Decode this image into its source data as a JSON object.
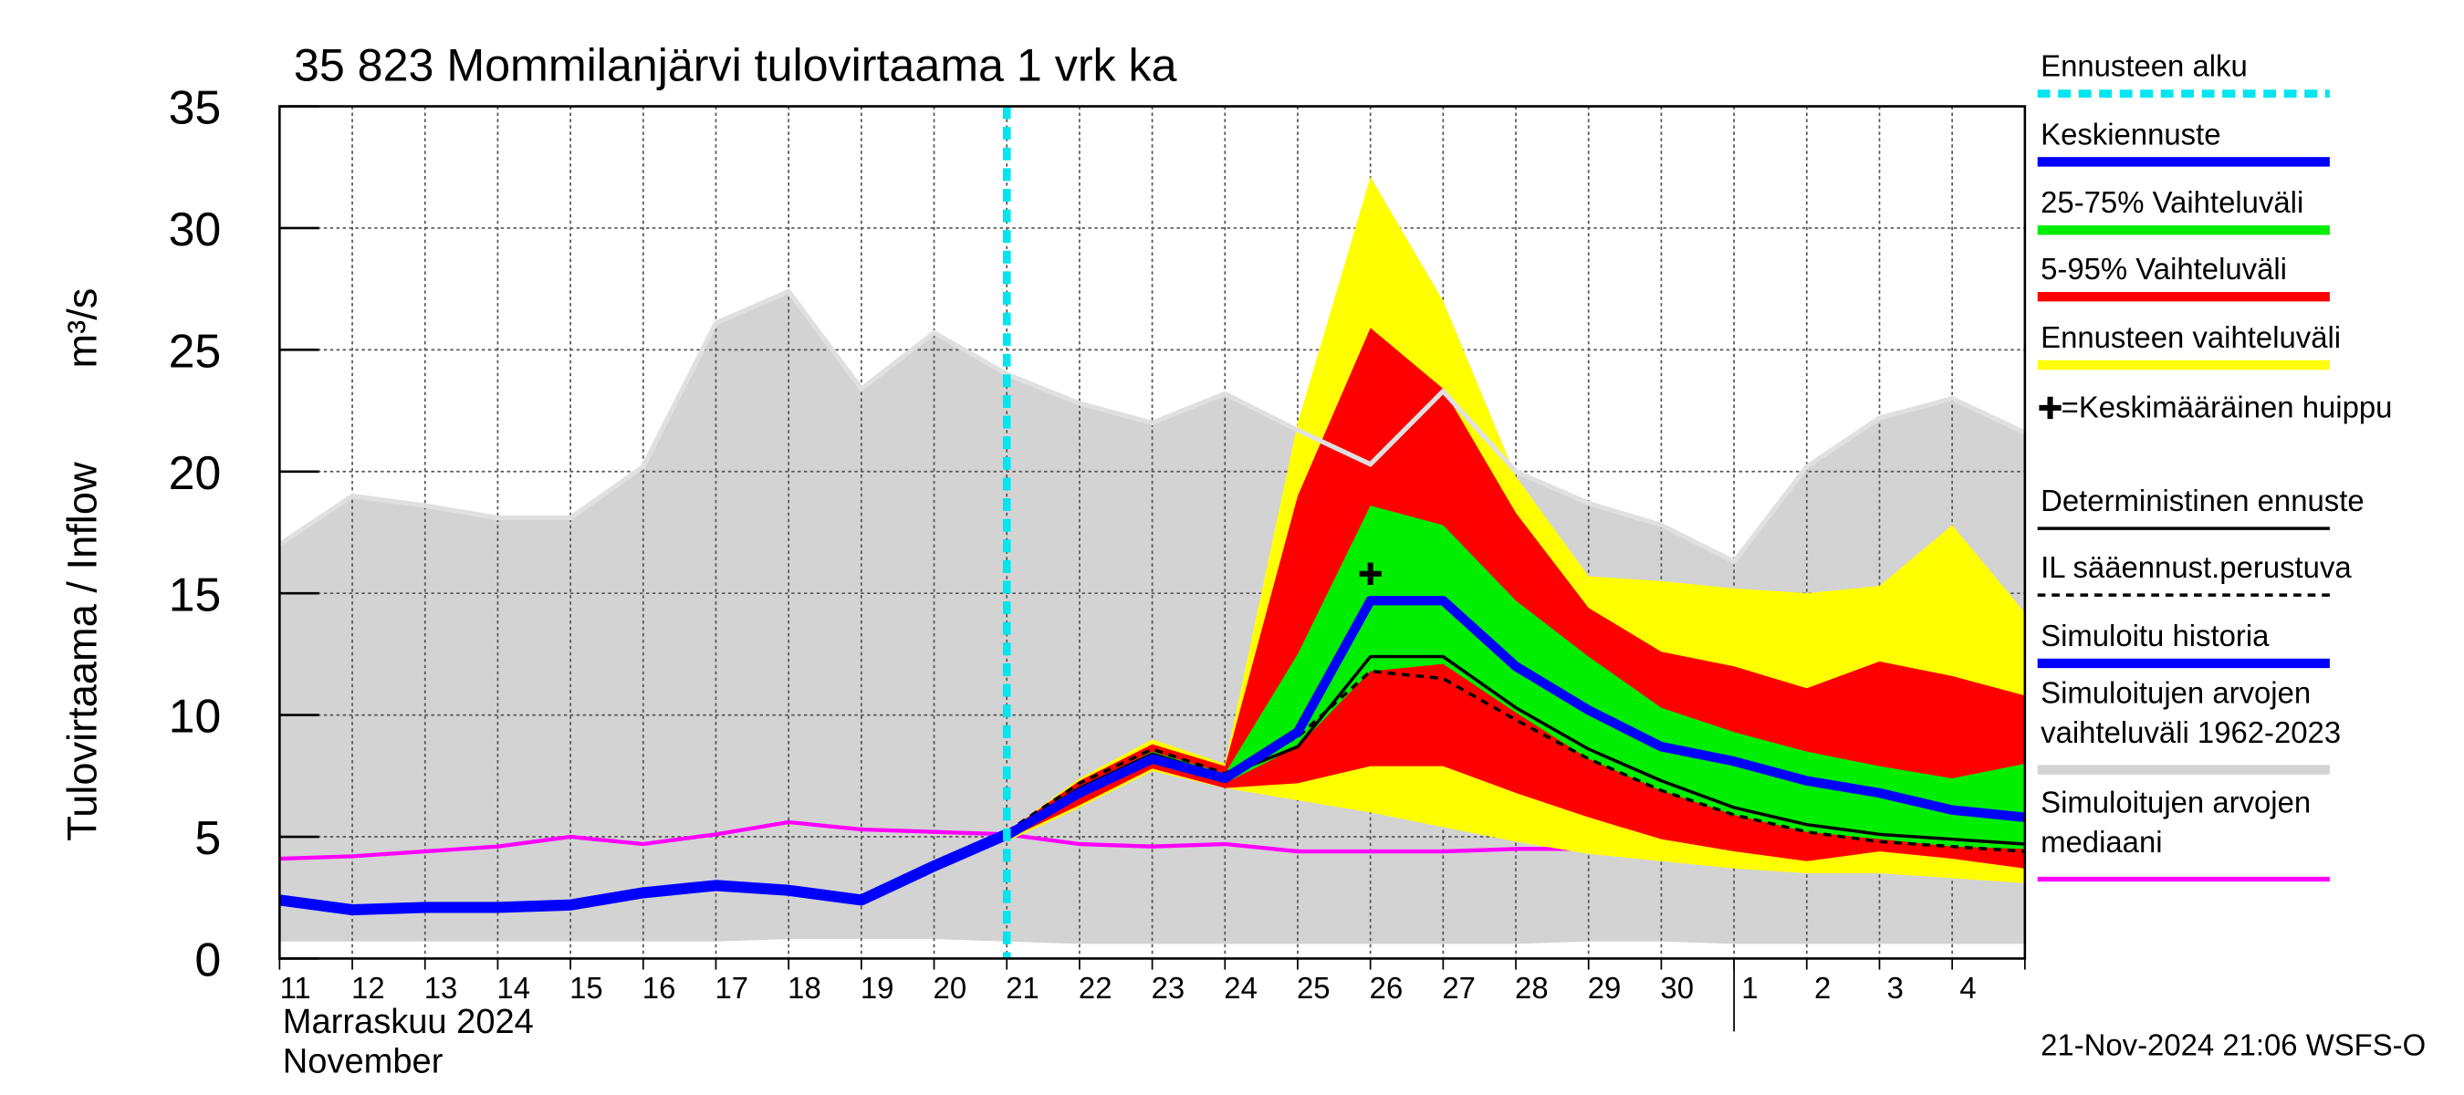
{
  "chart_data": {
    "type": "forecast-band",
    "title": "35 823 Mommilanjärvi tulovirtaama 1 vrk ka",
    "y_label": "Tulovirtaama / Inflow",
    "y_unit": "m³/s",
    "month_label_fi": "Marraskuu 2024",
    "month_label_en": "November",
    "footer": "21-Nov-2024 21:06 WSFS-O",
    "categories": [
      "11",
      "12",
      "13",
      "14",
      "15",
      "16",
      "17",
      "18",
      "19",
      "20",
      "21",
      "22",
      "23",
      "24",
      "25",
      "26",
      "27",
      "28",
      "29",
      "30",
      "1",
      "2",
      "3",
      "4",
      null
    ],
    "month_break": "1",
    "ylim": [
      0,
      35
    ],
    "yticks": [
      0,
      5,
      10,
      15,
      20,
      25,
      30,
      35
    ],
    "grid": true,
    "forecast_start": {
      "name": "Ennusteen alku",
      "color": "#00e5ee",
      "x": "21"
    },
    "peak": {
      "name": "=Keskimääräinen huippu",
      "color": "#000000",
      "x": "26",
      "value": 15.8
    },
    "series": [
      {
        "name": "Keskiennuste",
        "kind": "line",
        "color": "#0000ff",
        "values": [
          null,
          null,
          null,
          null,
          null,
          null,
          null,
          null,
          null,
          null,
          5.05,
          6.8,
          8.2,
          7.4,
          9.3,
          14.7,
          14.7,
          12.0,
          10.2,
          8.7,
          8.1,
          7.3,
          6.8,
          6.1,
          5.8
        ]
      },
      {
        "name": "25-75% Vaihteluväli",
        "kind": "band",
        "color": "#00ee00",
        "upper": [
          null,
          null,
          null,
          null,
          null,
          null,
          null,
          null,
          null,
          null,
          5.1,
          7.0,
          8.5,
          7.6,
          12.5,
          18.6,
          17.8,
          14.7,
          12.4,
          10.3,
          9.3,
          8.5,
          7.9,
          7.4,
          8.0
        ],
        "lower": [
          null,
          null,
          null,
          null,
          null,
          null,
          null,
          null,
          null,
          null,
          5.0,
          6.6,
          8.0,
          7.2,
          8.7,
          11.8,
          12.1,
          10.1,
          8.2,
          6.9,
          5.9,
          5.2,
          4.9,
          4.6,
          4.5
        ]
      },
      {
        "name": "5-95% Vaihteluväli",
        "kind": "band",
        "color": "#ff0000",
        "upper": [
          null,
          null,
          null,
          null,
          null,
          null,
          null,
          null,
          null,
          null,
          5.2,
          7.3,
          8.8,
          7.9,
          19.0,
          25.9,
          23.4,
          18.3,
          14.4,
          12.6,
          12.0,
          11.1,
          12.2,
          11.6,
          10.8
        ],
        "lower": [
          null,
          null,
          null,
          null,
          null,
          null,
          null,
          null,
          null,
          null,
          4.9,
          6.3,
          7.8,
          7.0,
          7.2,
          7.9,
          7.9,
          6.8,
          5.8,
          4.9,
          4.4,
          4.0,
          4.4,
          4.1,
          3.7
        ]
      },
      {
        "name": "Ennusteen vaihteluväli",
        "kind": "band",
        "color": "#ffff00",
        "upper": [
          null,
          null,
          null,
          null,
          null,
          null,
          null,
          null,
          null,
          null,
          5.2,
          7.4,
          9.0,
          8.0,
          22.0,
          32.1,
          27.0,
          19.8,
          15.7,
          15.5,
          15.2,
          15.0,
          15.3,
          17.8,
          14.2
        ],
        "lower": [
          null,
          null,
          null,
          null,
          null,
          null,
          null,
          null,
          null,
          null,
          4.8,
          6.2,
          7.7,
          7.0,
          6.5,
          6.0,
          5.4,
          4.8,
          4.3,
          4.0,
          3.7,
          3.5,
          3.5,
          3.3,
          3.1
        ]
      },
      {
        "name": "Deterministinen ennuste",
        "kind": "line-thin",
        "color": "#000000",
        "values": [
          null,
          null,
          null,
          null,
          null,
          null,
          null,
          null,
          null,
          null,
          5.1,
          7.0,
          8.4,
          7.5,
          8.7,
          12.4,
          12.4,
          10.3,
          8.6,
          7.3,
          6.2,
          5.5,
          5.1,
          4.9,
          4.7
        ]
      },
      {
        "name": "IL sääennust.perustuva",
        "kind": "line-dashed",
        "color": "#000000",
        "values": [
          null,
          null,
          null,
          null,
          null,
          null,
          null,
          null,
          null,
          null,
          5.2,
          7.2,
          8.6,
          7.6,
          9.1,
          11.8,
          11.5,
          9.8,
          8.2,
          6.9,
          5.9,
          5.2,
          4.8,
          4.6,
          4.4
        ]
      },
      {
        "name": "Simuloitu historia",
        "kind": "line-history",
        "color": "#0000ff",
        "values": [
          2.4,
          2.0,
          2.1,
          2.1,
          2.2,
          2.7,
          3.0,
          2.8,
          2.4,
          3.8,
          5.1,
          null,
          null,
          null,
          null,
          null,
          null,
          null,
          null,
          null,
          null,
          null,
          null,
          null,
          null
        ]
      },
      {
        "name": [
          "Simuloitujen arvojen",
          "vaihteluväli 1962-2023"
        ],
        "kind": "range",
        "color": "#d3d3d3",
        "upper": [
          17.0,
          19.0,
          18.6,
          18.1,
          18.1,
          20.2,
          26.1,
          27.4,
          23.4,
          25.7,
          24.0,
          22.8,
          22.0,
          23.2,
          21.7,
          20.3,
          23.3,
          20.0,
          18.7,
          17.8,
          16.3,
          20.2,
          22.2,
          23.0,
          21.6
        ],
        "lower": [
          0.7,
          0.7,
          0.7,
          0.7,
          0.7,
          0.7,
          0.7,
          0.8,
          0.8,
          0.8,
          0.7,
          0.6,
          0.6,
          0.6,
          0.6,
          0.6,
          0.6,
          0.6,
          0.7,
          0.7,
          0.6,
          0.6,
          0.6,
          0.6,
          0.6
        ]
      },
      {
        "name": [
          "Simuloitujen arvojen",
          "mediaani"
        ],
        "kind": "median",
        "color": "#ff00ff",
        "values": [
          4.1,
          4.2,
          4.4,
          4.6,
          5.0,
          4.7,
          5.1,
          5.6,
          5.3,
          5.2,
          5.1,
          4.7,
          4.6,
          4.7,
          4.4,
          4.4,
          4.4,
          4.5,
          4.5,
          4.5,
          4.9,
          4.8,
          4.5,
          4.2,
          4.1
        ]
      }
    ]
  }
}
